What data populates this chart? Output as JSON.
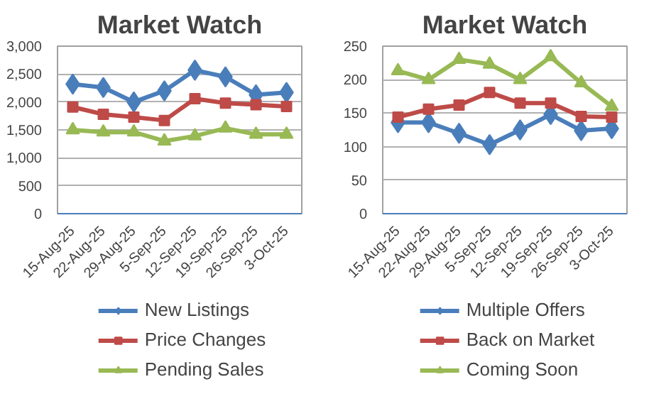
{
  "chart_data": [
    {
      "type": "line",
      "title": "Market Watch",
      "categories": [
        "15-Aug-25",
        "22-Aug-25",
        "29-Aug-25",
        "5-Sep-25",
        "12-Sep-25",
        "19-Sep-25",
        "26-Sep-25",
        "3-Oct-25"
      ],
      "series": [
        {
          "name": "New Listings",
          "color": "#4a7ebb",
          "marker": "diamond",
          "values": [
            2320,
            2260,
            2000,
            2200,
            2570,
            2450,
            2130,
            2170
          ]
        },
        {
          "name": "Price Changes",
          "color": "#be4b48",
          "marker": "square",
          "values": [
            1910,
            1780,
            1730,
            1670,
            2060,
            1980,
            1950,
            1920
          ]
        },
        {
          "name": "Pending Sales",
          "color": "#98b954",
          "marker": "triangle",
          "values": [
            1500,
            1460,
            1460,
            1300,
            1390,
            1530,
            1420,
            1420
          ]
        }
      ],
      "ylim": [
        0,
        3000
      ],
      "yticks": [
        0,
        {
          "value": 500,
          "label": "500"
        },
        {
          "value": 1000,
          "label": "1,000"
        },
        {
          "value": 1500,
          "label": "1,500"
        },
        {
          "value": 2000,
          "label": "2,000"
        },
        {
          "value": 2500,
          "label": "2,500"
        },
        {
          "value": 3000,
          "label": "3,000"
        }
      ],
      "grid": "y",
      "legend": "bottom"
    },
    {
      "type": "line",
      "title": "Market Watch",
      "categories": [
        "15-Aug-25",
        "22-Aug-25",
        "29-Aug-25",
        "5-Sep-25",
        "12-Sep-25",
        "19-Sep-25",
        "26-Sep-25",
        "3-Oct-25"
      ],
      "series": [
        {
          "name": "Multiple Offers",
          "color": "#4a7ebb",
          "marker": "diamond",
          "values": [
            136,
            136,
            120,
            103,
            125,
            148,
            124,
            127
          ]
        },
        {
          "name": "Back on Market",
          "color": "#be4b48",
          "marker": "square",
          "values": [
            144,
            156,
            162,
            181,
            165,
            165,
            145,
            144
          ]
        },
        {
          "name": "Coming Soon",
          "color": "#98b954",
          "marker": "triangle",
          "values": [
            213,
            200,
            230,
            223,
            200,
            234,
            195,
            160
          ]
        }
      ],
      "ylim": [
        0,
        250
      ],
      "yticks": [
        0,
        50,
        100,
        150,
        200,
        250
      ],
      "grid": "y",
      "legend": "bottom"
    }
  ]
}
